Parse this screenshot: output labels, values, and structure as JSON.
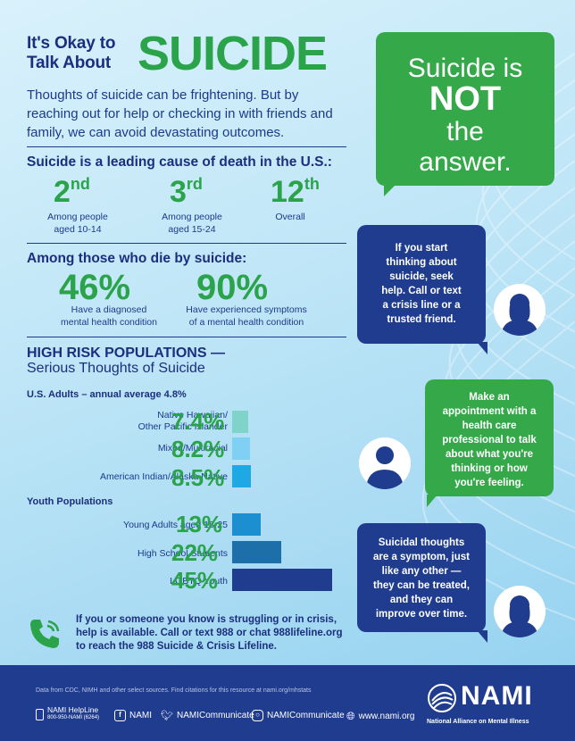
{
  "title": {
    "line1": "It's Okay to",
    "line2": "Talk About",
    "big": "SUICIDE"
  },
  "intro": "Thoughts of suicide can be frightening. But by reaching out for help or checking in with friends and family, we can avoid devastating outcomes.",
  "leading_cause": {
    "heading": "Suicide is a leading cause of death in the U.S.:",
    "ranks": [
      {
        "num": "2",
        "suffix": "nd",
        "desc1": "Among  people",
        "desc2": "aged 10-14"
      },
      {
        "num": "3",
        "suffix": "rd",
        "desc1": "Among people",
        "desc2": "aged 15-24"
      },
      {
        "num": "12",
        "suffix": "th",
        "desc1": "Overall",
        "desc2": ""
      }
    ]
  },
  "among_those": {
    "heading": "Among those who die by suicide:",
    "stats": [
      {
        "pct": "46%",
        "desc1": "Have a diagnosed",
        "desc2": "mental health condition"
      },
      {
        "pct": "90%",
        "desc1": "Have experienced symptoms",
        "desc2": "of a mental health condition"
      }
    ]
  },
  "high_risk": {
    "title": "HIGH RISK POPULATIONS —",
    "subtitle": "Serious Thoughts of Suicide",
    "adults_label": "U.S. Adults – annual average 4.8%",
    "youth_label": "Youth Populations",
    "adults": [
      {
        "label1": "Native Hawaiian/",
        "label2": "Other Pacific Islander",
        "pct": "7.4%",
        "value": 7.4,
        "color": "#7fd3c8"
      },
      {
        "label1": "Mixed/Multiracial",
        "label2": "",
        "pct": "8.2%",
        "value": 8.2,
        "color": "#7fd0f2"
      },
      {
        "label1": "American Indian/Alaska Native",
        "label2": "",
        "pct": "8.5%",
        "value": 8.5,
        "color": "#1ea8e4"
      }
    ],
    "youth": [
      {
        "label": "Young Adults aged 18-25",
        "pct": "13%",
        "value": 13,
        "color": "#1c8fd0"
      },
      {
        "label": "High School Students",
        "pct": "22%",
        "value": 22,
        "color": "#1c6fa8"
      },
      {
        "label": "LGBTQ Youth",
        "pct": "45%",
        "value": 45,
        "color": "#1f3c8f"
      }
    ]
  },
  "bubbles": {
    "main_1": "Suicide is",
    "main_2": "NOT",
    "main_3": "the",
    "main_4": "answer.",
    "b1": [
      "If you start",
      "thinking about",
      "suicide, seek",
      "help. Call or text",
      "a crisis line or a",
      "trusted friend."
    ],
    "b2": [
      "Make an",
      "appointment with a",
      "health care",
      "professional to talk",
      "about what you're",
      "thinking or how",
      "you're feeling."
    ],
    "b3": [
      "Suicidal thoughts",
      "are a symptom, just",
      "like any other —",
      "they can be treated,",
      "and they can",
      "improve over time."
    ]
  },
  "help": {
    "line1": "If you or someone you know is struggling or in crisis,",
    "line2": "help is available. Call or text 988 or chat 988lifeline.org",
    "line3": "to reach the 988 Suicide & Crisis Lifeline."
  },
  "footer": {
    "note": "Data from CDC, NIMH and other select sources. Find citations for this resource at nami.org/mhstats",
    "helpline": "NAMI HelpLine",
    "helpline_num": "800-950-NAMI (6264)",
    "facebook": "NAMI",
    "twitter": "NAMICommunicate",
    "instagram": "NAMICommunicate",
    "website": "www.nami.org",
    "logo_word": "NAMI",
    "logo_sub": "National Alliance on Mental Illness"
  },
  "colors": {
    "navy": "#1f3c8f",
    "green": "#2aa34a",
    "bubble_green": "#35a84a",
    "bubble_navy": "#1f3c8f"
  }
}
